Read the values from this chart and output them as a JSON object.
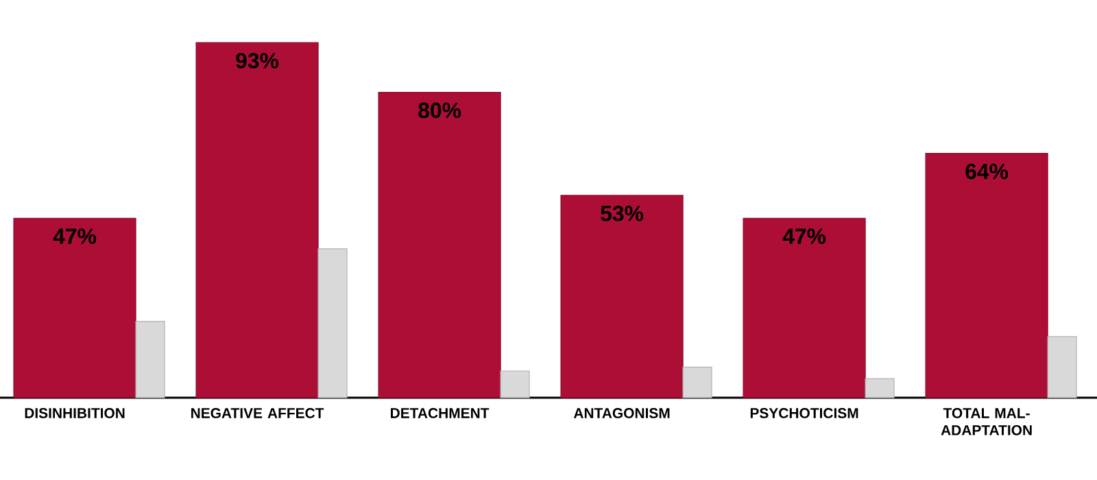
{
  "chart_data": {
    "type": "bar",
    "categories": [
      "DISINHIBITION",
      "NEGATIVE AFFECT",
      "DETACHMENT",
      "ANTAGONISM",
      "PSYCHOTICISM",
      "TOTAL MAL-ADAPTATION"
    ],
    "series": [
      {
        "color": "#ad0e36",
        "values": [
          47,
          93,
          80,
          53,
          47,
          64
        ],
        "value_labels": [
          "47%",
          "93%",
          "80%",
          "53%",
          "47%",
          "64%"
        ]
      },
      {
        "color": "#d9d9d9",
        "values": [
          20,
          39,
          7,
          8,
          5,
          16
        ]
      }
    ],
    "tick_labels": "x"
  }
}
